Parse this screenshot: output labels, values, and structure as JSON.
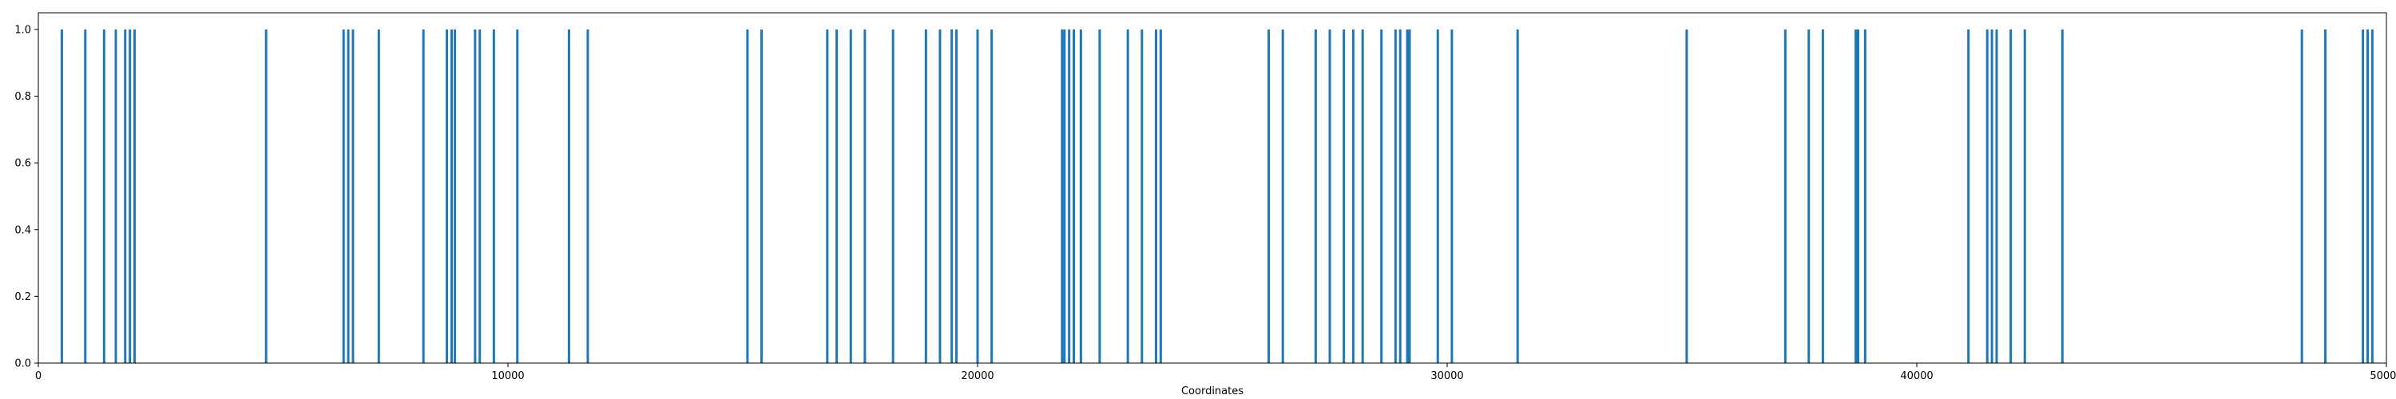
{
  "chart_data": {
    "type": "bar",
    "title": "",
    "xlabel": "Coordinates",
    "ylabel": "",
    "xlim": [
      0,
      50000
    ],
    "ylim": [
      0,
      1.05
    ],
    "xticks": [
      0,
      10000,
      20000,
      30000,
      40000,
      50000
    ],
    "xtick_labels": [
      "0",
      "10000",
      "20000",
      "30000",
      "40000",
      "50000"
    ],
    "yticks": [
      0.0,
      0.2,
      0.4,
      0.6,
      0.8,
      1.0
    ],
    "ytick_labels": [
      "0.0",
      "0.2",
      "0.4",
      "0.6",
      "0.8",
      "1.0"
    ],
    "grid": false,
    "color": "#1f77b4",
    "x": [
      500,
      1000,
      1400,
      1650,
      1850,
      1950,
      2050,
      4850,
      6500,
      6600,
      6700,
      7250,
      8200,
      8700,
      8800,
      8870,
      9300,
      9400,
      9700,
      10200,
      11300,
      11700,
      15100,
      15400,
      16800,
      17000,
      17300,
      17600,
      18200,
      18900,
      19200,
      19450,
      19550,
      20000,
      20300,
      21800,
      21850,
      21950,
      22050,
      22200,
      22600,
      23200,
      23500,
      23800,
      23900,
      26200,
      26500,
      27200,
      27500,
      27800,
      28000,
      28200,
      28600,
      28900,
      29000,
      29150,
      29200,
      29800,
      30100,
      31500,
      35100,
      37200,
      37700,
      38000,
      38700,
      38750,
      38900,
      41100,
      41500,
      41600,
      41700,
      42000,
      42300,
      43100,
      48200,
      48700,
      49500,
      49600,
      49700
    ],
    "values": [
      1,
      1,
      1,
      1,
      1,
      1,
      1,
      1,
      1,
      1,
      1,
      1,
      1,
      1,
      1,
      1,
      1,
      1,
      1,
      1,
      1,
      1,
      1,
      1,
      1,
      1,
      1,
      1,
      1,
      1,
      1,
      1,
      1,
      1,
      1,
      1,
      1,
      1,
      1,
      1,
      1,
      1,
      1,
      1,
      1,
      1,
      1,
      1,
      1,
      1,
      1,
      1,
      1,
      1,
      1,
      1,
      1,
      1,
      1,
      1,
      1,
      1,
      1,
      1,
      1,
      1,
      1,
      1,
      1,
      1,
      1,
      1,
      1,
      1,
      1,
      1,
      1,
      1,
      1
    ]
  }
}
